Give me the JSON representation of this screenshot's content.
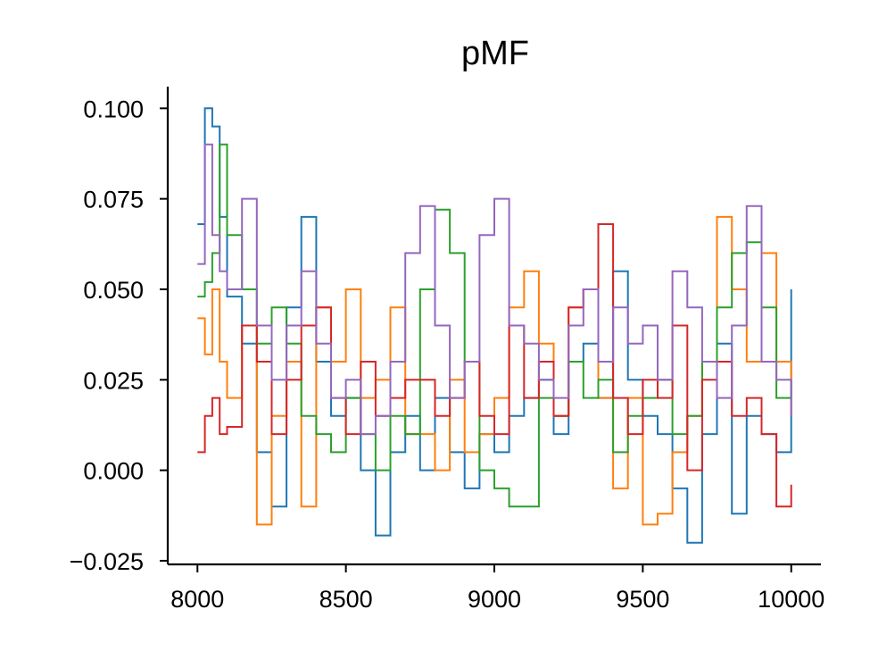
{
  "chart_data": {
    "type": "line",
    "title": "pMF",
    "xlabel": "",
    "ylabel": "",
    "xlim": [
      7900,
      10100
    ],
    "ylim": [
      -0.026,
      0.106
    ],
    "xticks": [
      8000,
      8500,
      9000,
      9500,
      10000
    ],
    "xtick_labels": [
      "8000",
      "8500",
      "9000",
      "9500",
      "10000"
    ],
    "yticks": [
      -0.025,
      0.0,
      0.025,
      0.05,
      0.075,
      0.1
    ],
    "ytick_labels": [
      "−0.025",
      "0.000",
      "0.025",
      "0.050",
      "0.075",
      "0.100"
    ],
    "grid": false,
    "step": 10,
    "series_colors": [
      "#1f77b4",
      "#ff7f0e",
      "#2ca02c",
      "#d62728",
      "#9467bd"
    ],
    "series": [
      {
        "color": "#1f77b4",
        "x": [
          8000,
          8025,
          8050,
          8075,
          8100,
          8150,
          8200,
          8250,
          8300,
          8350,
          8400,
          8450,
          8500,
          8550,
          8600,
          8650,
          8700,
          8750,
          8800,
          8850,
          8900,
          8950,
          9000,
          9050,
          9100,
          9150,
          9200,
          9250,
          9300,
          9350,
          9400,
          9450,
          9500,
          9550,
          9600,
          9650,
          9700,
          9750,
          9800,
          9850,
          9900,
          9950,
          10000
        ],
        "values": [
          0.068,
          0.1,
          0.095,
          0.07,
          0.048,
          0.035,
          0.005,
          -0.01,
          0.045,
          0.07,
          0.03,
          0.015,
          0.02,
          0.0,
          -0.018,
          0.005,
          0.015,
          0.0,
          0.02,
          0.005,
          -0.005,
          0.01,
          0.005,
          0.015,
          0.02,
          0.025,
          0.01,
          0.03,
          0.035,
          0.02,
          0.055,
          0.025,
          0.015,
          0.01,
          -0.005,
          -0.02,
          0.01,
          0.035,
          -0.012,
          0.015,
          0.01,
          0.005,
          0.05
        ]
      },
      {
        "color": "#ff7f0e",
        "x": [
          8000,
          8025,
          8050,
          8075,
          8100,
          8150,
          8200,
          8250,
          8300,
          8350,
          8400,
          8450,
          8500,
          8550,
          8600,
          8650,
          8700,
          8750,
          8800,
          8850,
          8900,
          8950,
          9000,
          9050,
          9100,
          9150,
          9200,
          9250,
          9300,
          9350,
          9400,
          9450,
          9500,
          9550,
          9600,
          9650,
          9700,
          9750,
          9800,
          9850,
          9900,
          9950,
          10000
        ],
        "values": [
          0.042,
          0.032,
          0.05,
          0.03,
          0.02,
          0.04,
          -0.015,
          0.015,
          0.03,
          -0.01,
          0.045,
          0.03,
          0.05,
          0.02,
          0.025,
          0.045,
          0.01,
          0.01,
          0.0,
          0.025,
          0.005,
          0.01,
          0.02,
          0.045,
          0.055,
          0.035,
          0.015,
          0.045,
          0.05,
          0.02,
          -0.005,
          0.02,
          -0.015,
          -0.012,
          0.005,
          0.015,
          0.03,
          0.07,
          0.05,
          0.03,
          0.06,
          0.03,
          0.015
        ]
      },
      {
        "color": "#2ca02c",
        "x": [
          8000,
          8025,
          8050,
          8075,
          8100,
          8150,
          8200,
          8250,
          8300,
          8350,
          8400,
          8450,
          8500,
          8550,
          8600,
          8650,
          8700,
          8750,
          8800,
          8850,
          8900,
          8950,
          9000,
          9050,
          9100,
          9150,
          9200,
          9250,
          9300,
          9350,
          9400,
          9450,
          9500,
          9550,
          9600,
          9650,
          9700,
          9750,
          9800,
          9850,
          9900,
          9950,
          10000
        ],
        "values": [
          0.048,
          0.052,
          0.06,
          0.09,
          0.065,
          0.05,
          0.035,
          0.045,
          0.035,
          0.015,
          0.01,
          0.005,
          0.02,
          0.01,
          0.0,
          0.015,
          0.01,
          0.05,
          0.072,
          0.06,
          0.03,
          0.0,
          -0.005,
          -0.01,
          -0.01,
          0.02,
          0.015,
          0.03,
          0.02,
          0.025,
          0.005,
          0.015,
          0.02,
          0.025,
          0.01,
          0.015,
          0.03,
          0.045,
          0.06,
          0.063,
          0.045,
          0.02,
          0.025
        ]
      },
      {
        "color": "#d62728",
        "x": [
          8000,
          8025,
          8050,
          8075,
          8100,
          8150,
          8200,
          8250,
          8300,
          8350,
          8400,
          8450,
          8500,
          8550,
          8600,
          8650,
          8700,
          8750,
          8800,
          8850,
          8900,
          8950,
          9000,
          9050,
          9100,
          9150,
          9200,
          9250,
          9300,
          9350,
          9400,
          9450,
          9500,
          9550,
          9600,
          9650,
          9700,
          9750,
          9800,
          9850,
          9900,
          9950,
          10000
        ],
        "values": [
          0.005,
          0.015,
          0.02,
          0.01,
          0.012,
          0.04,
          0.03,
          0.01,
          0.025,
          0.04,
          0.045,
          0.02,
          0.01,
          0.03,
          0.015,
          0.02,
          0.025,
          0.025,
          0.015,
          0.02,
          0.03,
          0.015,
          0.01,
          0.04,
          0.02,
          0.03,
          0.015,
          0.045,
          0.05,
          0.068,
          0.02,
          0.01,
          0.025,
          0.02,
          0.04,
          0.0,
          0.025,
          0.03,
          0.015,
          0.02,
          0.01,
          -0.01,
          -0.004
        ]
      },
      {
        "color": "#9467bd",
        "x": [
          8000,
          8025,
          8050,
          8075,
          8100,
          8150,
          8200,
          8250,
          8300,
          8350,
          8400,
          8450,
          8500,
          8550,
          8600,
          8650,
          8700,
          8750,
          8800,
          8850,
          8900,
          8950,
          9000,
          9050,
          9100,
          9150,
          9200,
          9250,
          9300,
          9350,
          9400,
          9450,
          9500,
          9550,
          9600,
          9650,
          9700,
          9750,
          9800,
          9850,
          9900,
          9950,
          10000
        ],
        "values": [
          0.057,
          0.09,
          0.065,
          0.055,
          0.05,
          0.075,
          0.04,
          0.025,
          0.04,
          0.055,
          0.035,
          0.02,
          0.025,
          0.01,
          0.015,
          0.03,
          0.06,
          0.073,
          0.04,
          0.02,
          0.03,
          0.065,
          0.075,
          0.04,
          0.035,
          0.025,
          0.02,
          0.04,
          0.05,
          0.03,
          0.045,
          0.035,
          0.04,
          0.025,
          0.055,
          0.045,
          0.03,
          0.02,
          0.04,
          0.073,
          0.03,
          0.025,
          0.015
        ]
      }
    ]
  }
}
